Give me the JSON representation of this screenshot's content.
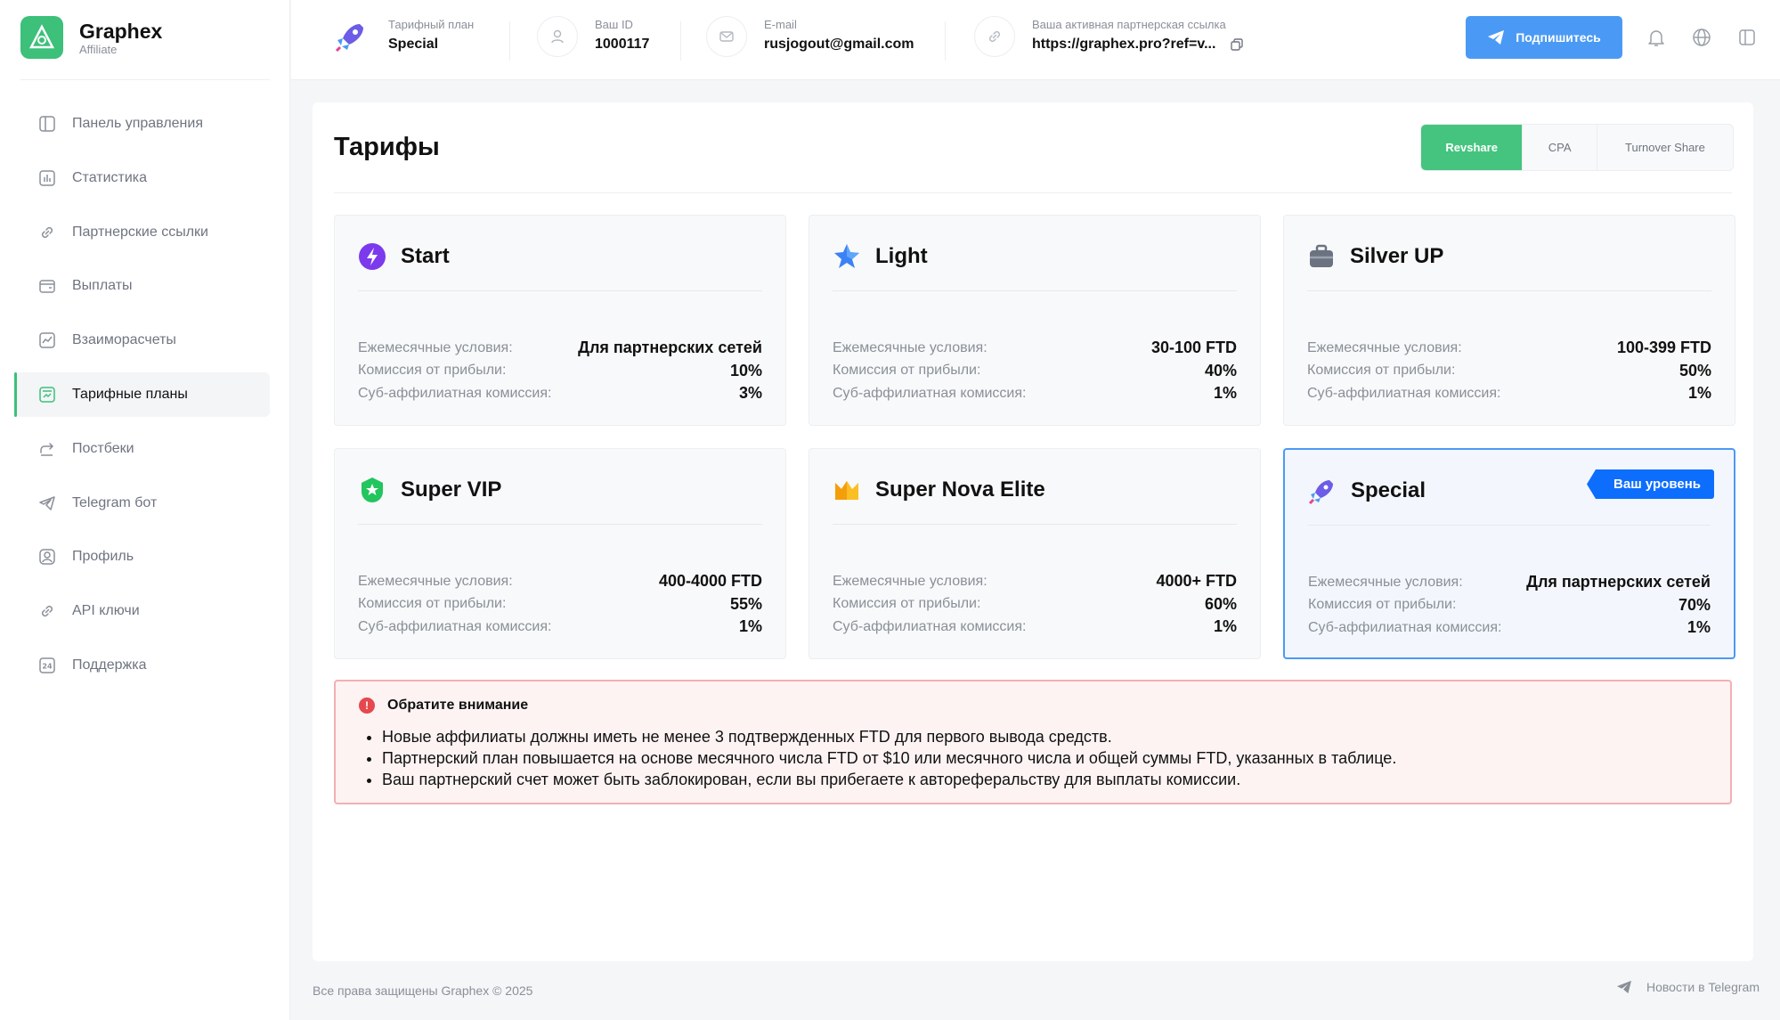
{
  "brand": {
    "name": "Graphex",
    "sub": "Affiliate"
  },
  "sidebar": {
    "items": [
      {
        "label": "Панель управления",
        "icon": "dashboard-icon",
        "active": false
      },
      {
        "label": "Статистика",
        "icon": "stats-icon",
        "active": false
      },
      {
        "label": "Партнерские ссылки",
        "icon": "link-icon",
        "active": false
      },
      {
        "label": "Выплаты",
        "icon": "wallet-icon",
        "active": false
      },
      {
        "label": "Взаиморасчеты",
        "icon": "chart-icon",
        "active": false
      },
      {
        "label": "Тарифные планы",
        "icon": "plans-icon",
        "active": true
      },
      {
        "label": "Постбеки",
        "icon": "postback-icon",
        "active": false
      },
      {
        "label": "Telegram бот",
        "icon": "telegram-icon",
        "active": false
      },
      {
        "label": "Профиль",
        "icon": "profile-icon",
        "active": false
      },
      {
        "label": "API ключи",
        "icon": "key-icon",
        "active": false
      },
      {
        "label": "Поддержка",
        "icon": "support-icon",
        "active": false
      }
    ]
  },
  "topbar": {
    "plan": {
      "label": "Тарифный план",
      "value": "Special"
    },
    "id": {
      "label": "Ваш ID",
      "value": "1000117"
    },
    "email": {
      "label": "E-mail",
      "value": "rusjogout@gmail.com"
    },
    "link": {
      "label": "Ваша активная партнерская ссылка",
      "value": "https://graphex.pro?ref=v..."
    },
    "subscribe": "Подпишитесь"
  },
  "main": {
    "title": "Тарифы",
    "tabs": [
      {
        "label": "Revshare",
        "active": true
      },
      {
        "label": "CPA",
        "active": false
      },
      {
        "label": "Turnover Share",
        "active": false
      }
    ],
    "row_labels": {
      "monthly": "Ежемесячные условия:",
      "commission": "Комиссия от прибыли:",
      "sub": "Суб-аффилиатная комиссия:"
    },
    "cards": [
      {
        "name": "Start",
        "icon": "bolt-icon",
        "monthly": "Для партнерских сетей",
        "commission": "10%",
        "sub": "3%"
      },
      {
        "name": "Light",
        "icon": "star-icon",
        "monthly": "30-100 FTD",
        "commission": "40%",
        "sub": "1%"
      },
      {
        "name": "Silver UP",
        "icon": "briefcase-icon",
        "monthly": "100-399 FTD",
        "commission": "50%",
        "sub": "1%"
      },
      {
        "name": "Super VIP",
        "icon": "shield-star-icon",
        "monthly": "400-4000 FTD",
        "commission": "55%",
        "sub": "1%"
      },
      {
        "name": "Super Nova Elite",
        "icon": "crown-icon",
        "monthly": "4000+ FTD",
        "commission": "60%",
        "sub": "1%"
      },
      {
        "name": "Special",
        "icon": "rocket-icon",
        "monthly": "Для партнерских сетей",
        "commission": "70%",
        "sub": "1%",
        "badge": "Ваш уровень"
      }
    ],
    "notice": {
      "title": "Обратите внимание",
      "items": [
        "Новые аффилиаты должны иметь не менее 3 подтвержденных FTD для первого вывода средств.",
        "Партнерский план повышается на основе месячного числа FTD от $10 или месячного числа и общей суммы FTD, указанных в таблице.",
        "Ваш партнерский счет может быть заблокирован, если вы прибегаете к автореферальству для выплаты комиссии."
      ]
    }
  },
  "footer": {
    "copyright": "Все права защищены Graphex © 2025",
    "telegram": "Новости в Telegram"
  },
  "colors": {
    "brand": "#3cc07a",
    "accent": "#4a9af5",
    "badge": "#0d6efd",
    "notice_border": "#f2b0b3"
  }
}
